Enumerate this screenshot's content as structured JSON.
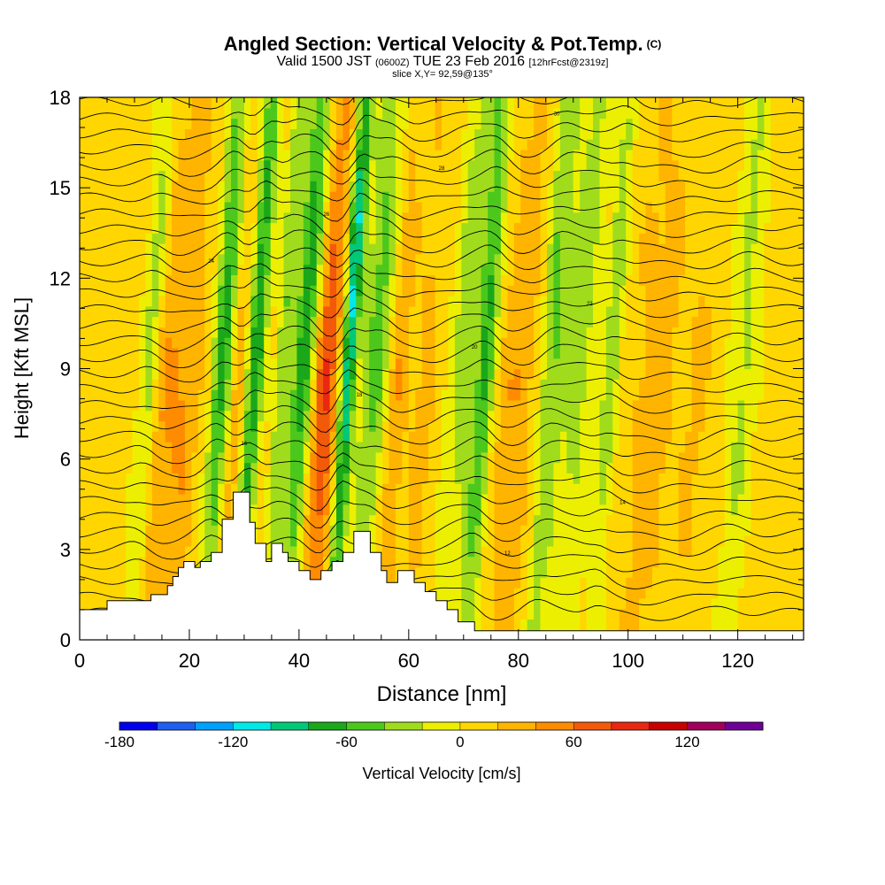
{
  "header": {
    "title": "Angled Section: Vertical Velocity & Pot.Temp.",
    "title_unit": "(C)",
    "valid_prefix": "Valid 1500 JST",
    "valid_utc": "(0600Z)",
    "valid_date": "TUE 23 Feb 2016",
    "forecast": "[12hrFcst@2319z]",
    "slice": "slice X,Y= 92,59@135°"
  },
  "chart_data": {
    "type": "heatmap",
    "xlabel": "Distance [nm]",
    "ylabel": "Height [Kft MSL]",
    "xlim": [
      0,
      132
    ],
    "ylim": [
      0,
      18
    ],
    "x_ticks": [
      0,
      20,
      40,
      60,
      80,
      100,
      120
    ],
    "y_ticks": [
      0,
      3,
      6,
      9,
      12,
      15,
      18
    ],
    "colorbar": {
      "label": "Vertical Velocity [cm/s]",
      "tick_values": [
        -180,
        -120,
        -60,
        0,
        60,
        120
      ],
      "colors": [
        "#0000ee",
        "#1e5ef0",
        "#00a0ff",
        "#00e8e8",
        "#00c878",
        "#1aa81a",
        "#4cc81c",
        "#a0dc1c",
        "#ecf000",
        "#ffd600",
        "#ffb400",
        "#ff8c00",
        "#f25a0a",
        "#ea2812",
        "#c80000",
        "#a0005a",
        "#6e0096"
      ]
    },
    "velocity_columns": [
      {
        "x": 13,
        "w": 2,
        "v": -40
      },
      {
        "x": 15,
        "w": 2,
        "v": 30
      },
      {
        "x": 19,
        "w": 3,
        "v": 35
      },
      {
        "x": 26,
        "w": 1.8,
        "v": -75
      },
      {
        "x": 29,
        "w": 1.5,
        "v": 25
      },
      {
        "x": 32,
        "w": 1.6,
        "v": -85
      },
      {
        "x": 37,
        "w": 1.4,
        "v": -45
      },
      {
        "x": 41,
        "w": 2.2,
        "v": -85
      },
      {
        "x": 45,
        "w": 2.6,
        "v": 75
      },
      {
        "x": 49,
        "w": 1.4,
        "v": -115
      },
      {
        "x": 54,
        "w": 2.8,
        "v": -55
      },
      {
        "x": 58,
        "w": 1.8,
        "v": 35
      },
      {
        "x": 63,
        "w": 2.2,
        "v": 20
      },
      {
        "x": 70,
        "w": 2.5,
        "v": -40
      },
      {
        "x": 74,
        "w": 1.8,
        "v": -70
      },
      {
        "x": 80,
        "w": 3.5,
        "v": 30
      },
      {
        "x": 86,
        "w": 2.0,
        "v": -55
      },
      {
        "x": 91,
        "w": 3.0,
        "v": -40
      },
      {
        "x": 97,
        "w": 1.5,
        "v": -45
      },
      {
        "x": 105,
        "w": 4,
        "v": 25
      },
      {
        "x": 113,
        "w": 2.5,
        "v": 15
      },
      {
        "x": 121,
        "w": 2.4,
        "v": -35
      }
    ],
    "terrain": [
      [
        0,
        1
      ],
      [
        5,
        1
      ],
      [
        5,
        1.3
      ],
      [
        10,
        1.3
      ],
      [
        10,
        1.3
      ],
      [
        13,
        1.3
      ],
      [
        13,
        1.5
      ],
      [
        16,
        1.5
      ],
      [
        16,
        1.8
      ],
      [
        17,
        1.8
      ],
      [
        17,
        2.1
      ],
      [
        18,
        2.1
      ],
      [
        18,
        2.4
      ],
      [
        19,
        2.4
      ],
      [
        19,
        2.6
      ],
      [
        21,
        2.6
      ],
      [
        21,
        2.4
      ],
      [
        22,
        2.4
      ],
      [
        22,
        2.6
      ],
      [
        24,
        2.6
      ],
      [
        24,
        2.9
      ],
      [
        26,
        2.9
      ],
      [
        26,
        4.0
      ],
      [
        28,
        4.0
      ],
      [
        28,
        4.9
      ],
      [
        31,
        4.9
      ],
      [
        31,
        3.9
      ],
      [
        32,
        3.9
      ],
      [
        32,
        3.2
      ],
      [
        34,
        3.2
      ],
      [
        34,
        2.6
      ],
      [
        35,
        2.6
      ],
      [
        35,
        3.2
      ],
      [
        37,
        3.2
      ],
      [
        37,
        2.9
      ],
      [
        38,
        2.9
      ],
      [
        38,
        2.6
      ],
      [
        40,
        2.6
      ],
      [
        40,
        2.3
      ],
      [
        42,
        2.3
      ],
      [
        42,
        2.0
      ],
      [
        44,
        2.0
      ],
      [
        44,
        2.3
      ],
      [
        46,
        2.3
      ],
      [
        46,
        2.6
      ],
      [
        48,
        2.6
      ],
      [
        48,
        2.9
      ],
      [
        50,
        2.9
      ],
      [
        50,
        3.6
      ],
      [
        53,
        3.6
      ],
      [
        53,
        2.9
      ],
      [
        55,
        2.9
      ],
      [
        55,
        2.3
      ],
      [
        56,
        2.3
      ],
      [
        56,
        1.9
      ],
      [
        58,
        1.9
      ],
      [
        58,
        2.3
      ],
      [
        61,
        2.3
      ],
      [
        61,
        1.9
      ],
      [
        63,
        1.9
      ],
      [
        63,
        1.6
      ],
      [
        65,
        1.6
      ],
      [
        65,
        1.3
      ],
      [
        67,
        1.3
      ],
      [
        67,
        1.0
      ],
      [
        69,
        1.0
      ],
      [
        69,
        0.6
      ],
      [
        72,
        0.6
      ],
      [
        72,
        0.3
      ],
      [
        132,
        0.3
      ]
    ],
    "theta_contour_labels": [
      "10",
      "12",
      "14",
      "16",
      "18",
      "20",
      "22",
      "24",
      "26",
      "28",
      "30"
    ]
  }
}
